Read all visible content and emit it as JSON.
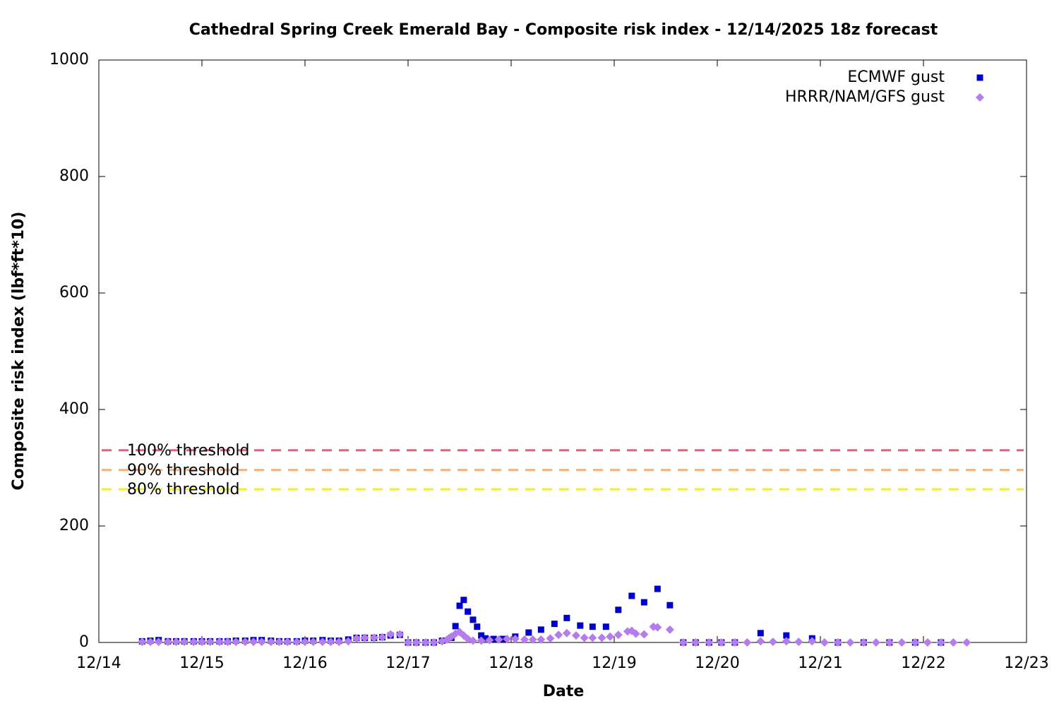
{
  "chart_data": {
    "type": "scatter",
    "title": "Cathedral Spring Creek Emerald Bay - Composite risk index - 12/14/2025 18z forecast",
    "x_label": "Date",
    "y_label": "Composite risk index (lbf*ft*10)",
    "xlim": [
      14,
      23
    ],
    "xticks": [
      {
        "value": 14,
        "label": "12/14"
      },
      {
        "value": 15,
        "label": "12/15"
      },
      {
        "value": 16,
        "label": "12/16"
      },
      {
        "value": 17,
        "label": "12/17"
      },
      {
        "value": 18,
        "label": "12/18"
      },
      {
        "value": 19,
        "label": "12/19"
      },
      {
        "value": 20,
        "label": "12/20"
      },
      {
        "value": 21,
        "label": "12/21"
      },
      {
        "value": 22,
        "label": "12/22"
      },
      {
        "value": 23,
        "label": "12/23"
      }
    ],
    "ylim": [
      0,
      1000
    ],
    "yticks": [
      0,
      200,
      400,
      600,
      800,
      1000
    ],
    "grid": false,
    "legend": "top right",
    "thresholds": [
      {
        "label": "100% threshold",
        "value": 330,
        "color": "#d9667f"
      },
      {
        "label": "90% threshold",
        "value": 296,
        "color": "#f4b07a"
      },
      {
        "label": "80% threshold",
        "value": 263,
        "color": "#f2f21a"
      }
    ],
    "series": [
      {
        "name": "ECMWF gust",
        "color": "#0000cc",
        "marker": "square",
        "x": [
          14.42,
          14.5,
          14.58,
          14.67,
          14.75,
          14.83,
          14.92,
          15,
          15.08,
          15.17,
          15.25,
          15.33,
          15.42,
          15.5,
          15.58,
          15.67,
          15.75,
          15.83,
          15.92,
          16,
          16.08,
          16.17,
          16.25,
          16.33,
          16.42,
          16.5,
          16.58,
          16.67,
          16.75,
          16.83,
          16.92,
          17,
          17.08,
          17.17,
          17.25,
          17.33,
          17.42,
          17.46,
          17.5,
          17.54,
          17.58,
          17.63,
          17.67,
          17.71,
          17.75,
          17.83,
          17.92,
          18.04,
          18.17,
          18.29,
          18.42,
          18.54,
          18.67,
          18.79,
          18.92,
          19.04,
          19.17,
          19.29,
          19.42,
          19.54,
          19.67,
          19.79,
          19.92,
          20.04,
          20.17,
          20.42,
          20.67,
          20.92,
          21.17,
          21.42,
          21.67,
          21.92,
          22.17
        ],
        "values": [
          2,
          3,
          4,
          2,
          2,
          2,
          2,
          2,
          2,
          2,
          2,
          3,
          3,
          4,
          4,
          3,
          2,
          2,
          2,
          3,
          3,
          4,
          3,
          3,
          5,
          8,
          8,
          8,
          9,
          12,
          13,
          0,
          0,
          0,
          0,
          3,
          8,
          28,
          63,
          73,
          53,
          39,
          27,
          12,
          7,
          6,
          6,
          10,
          17,
          22,
          32,
          42,
          29,
          27,
          27,
          56,
          80,
          69,
          92,
          64,
          0,
          0,
          0,
          0,
          0,
          16,
          12,
          7,
          0,
          0,
          0,
          0,
          0
        ]
      },
      {
        "name": "HRRR/NAM/GFS gust",
        "color": "#b57ced",
        "marker": "diamond",
        "x": [
          14.42,
          14.5,
          14.58,
          14.67,
          14.75,
          14.83,
          14.92,
          15,
          15.08,
          15.17,
          15.25,
          15.33,
          15.42,
          15.5,
          15.58,
          15.67,
          15.75,
          15.83,
          15.92,
          16,
          16.08,
          16.17,
          16.25,
          16.33,
          16.42,
          16.5,
          16.58,
          16.67,
          16.75,
          16.83,
          16.92,
          17,
          17.08,
          17.17,
          17.25,
          17.33,
          17.38,
          17.42,
          17.46,
          17.5,
          17.54,
          17.58,
          17.63,
          17.71,
          17.79,
          17.88,
          17.96,
          18.04,
          18.13,
          18.21,
          18.29,
          18.38,
          18.46,
          18.54,
          18.63,
          18.71,
          18.79,
          18.88,
          18.96,
          19.04,
          19.13,
          19.17,
          19.21,
          19.29,
          19.38,
          19.42,
          19.54,
          19.67,
          19.79,
          19.92,
          20.04,
          20.17,
          20.29,
          20.42,
          20.54,
          20.67,
          20.79,
          20.92,
          21.04,
          21.17,
          21.29,
          21.42,
          21.54,
          21.67,
          21.79,
          21.92,
          22.04,
          22.17,
          22.29,
          22.42
        ],
        "values": [
          1,
          1,
          1,
          1,
          1,
          1,
          1,
          1,
          1,
          1,
          1,
          1,
          1,
          1,
          1,
          1,
          1,
          1,
          1,
          1,
          1,
          1,
          1,
          1,
          2,
          7,
          8,
          8,
          9,
          14,
          14,
          0,
          0,
          0,
          0,
          2,
          5,
          10,
          15,
          18,
          12,
          6,
          3,
          3,
          4,
          5,
          6,
          6,
          5,
          5,
          5,
          7,
          13,
          16,
          12,
          8,
          8,
          8,
          10,
          13,
          19,
          20,
          15,
          14,
          27,
          26,
          22,
          0,
          0,
          0,
          0,
          0,
          0,
          2,
          1,
          2,
          1,
          2,
          0,
          0,
          0,
          0,
          0,
          0,
          0,
          0,
          0,
          0,
          0,
          0
        ]
      }
    ]
  }
}
